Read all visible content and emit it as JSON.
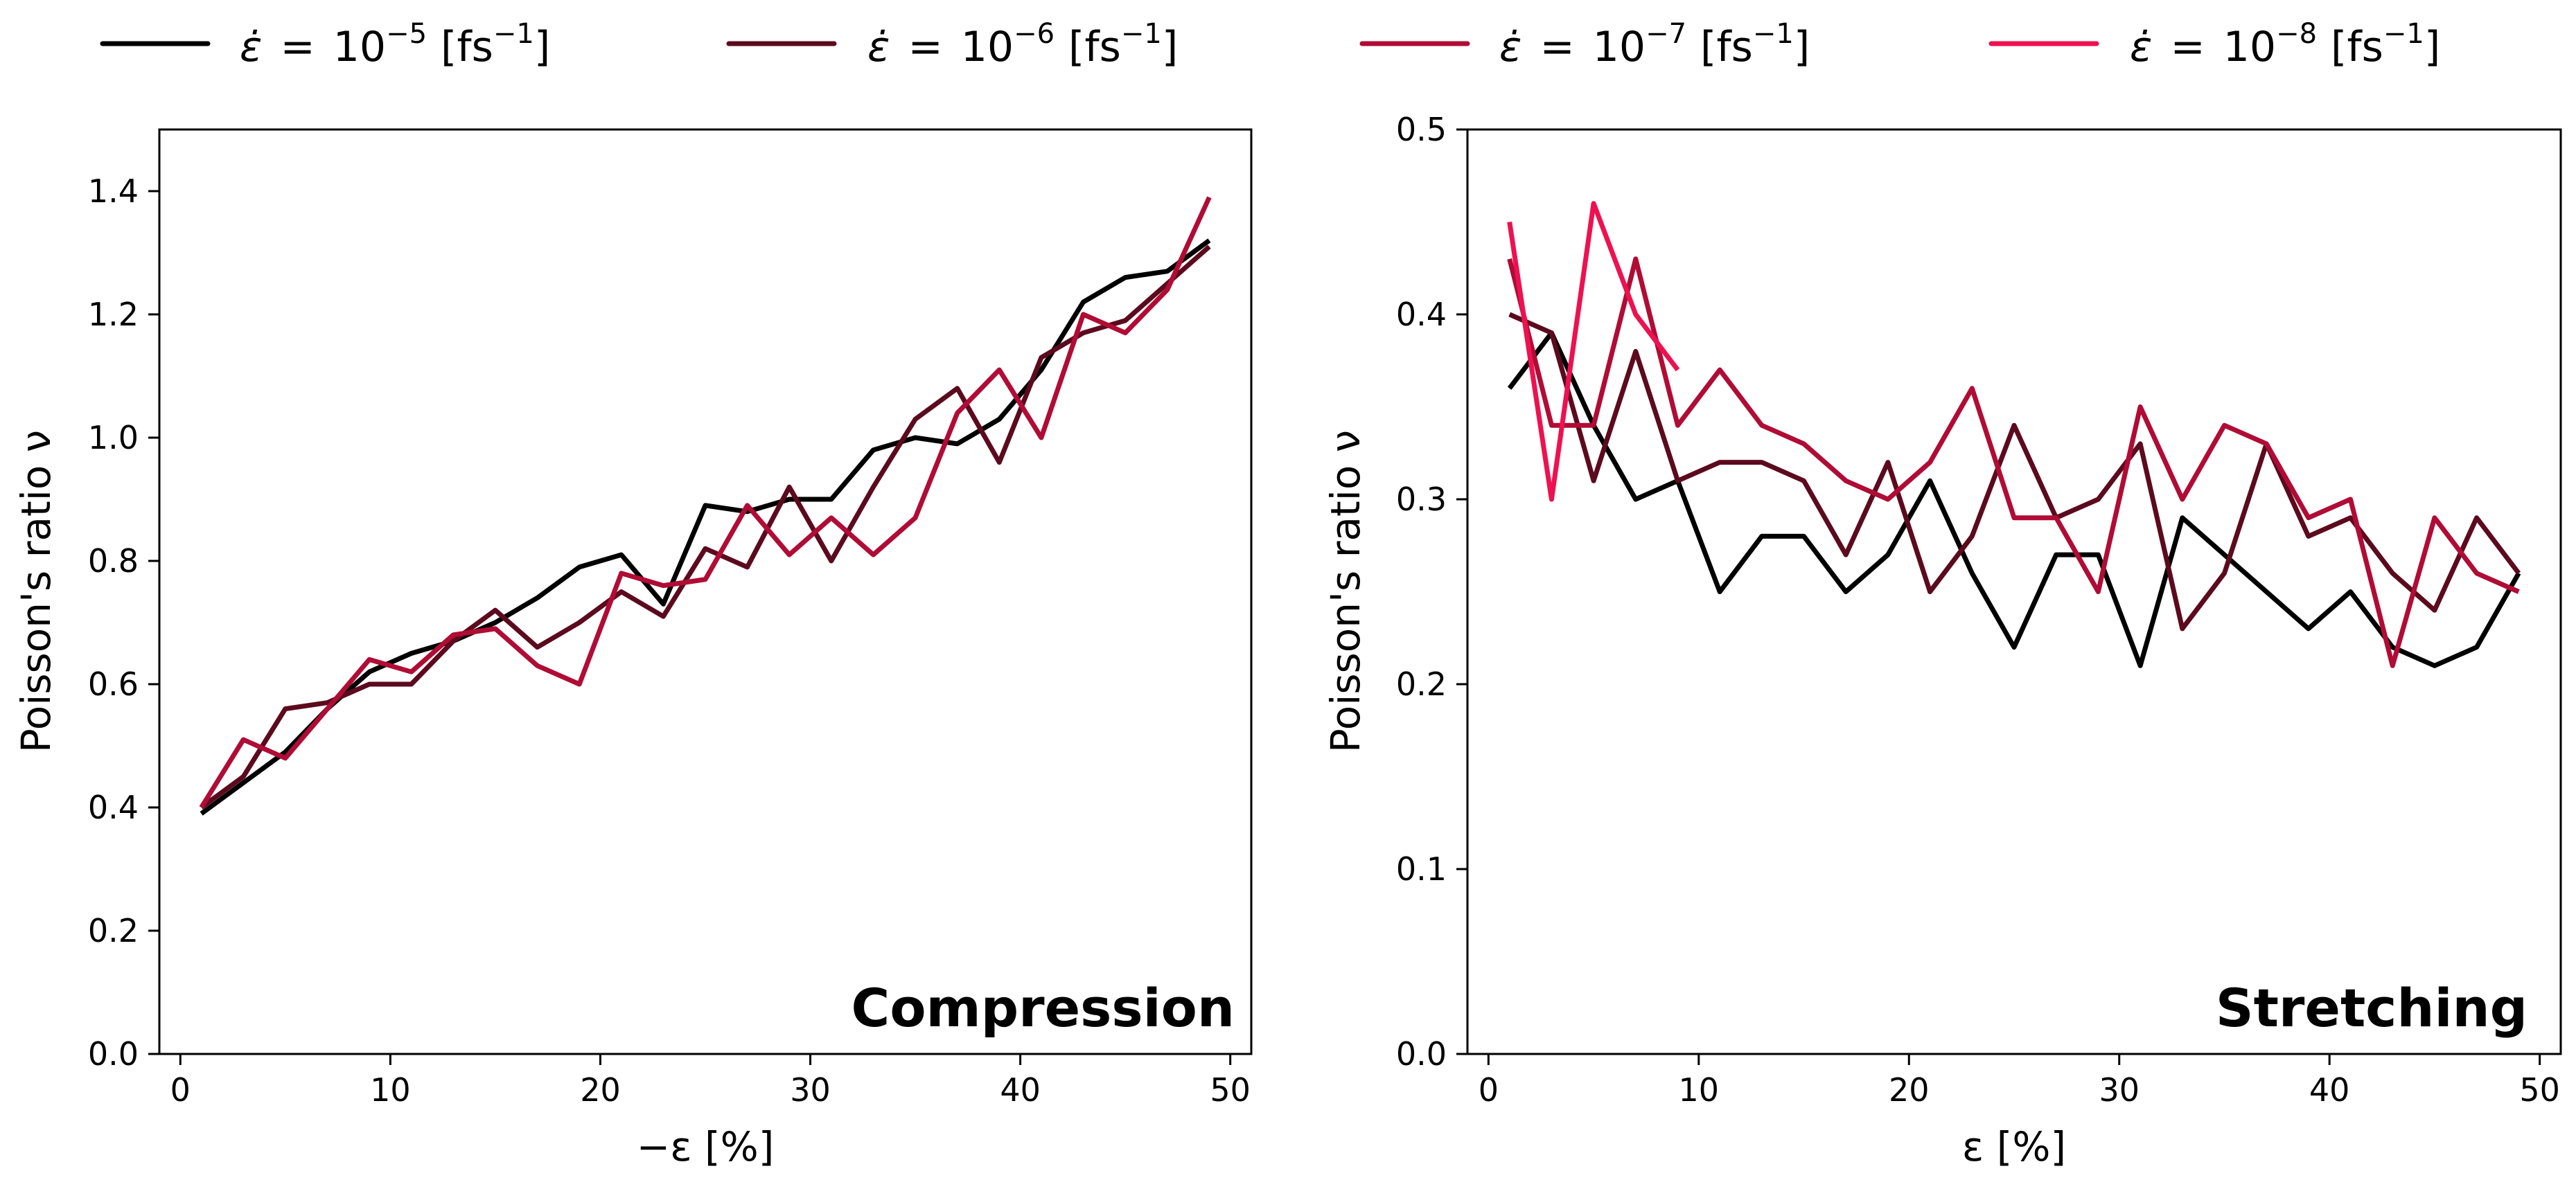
{
  "legend": [
    {
      "symbol": "ε̇",
      "eq": "=",
      "base": "10",
      "exp": "−5",
      "unit": "[fs",
      "unit_exp": "−1",
      "unit_close": "]",
      "color": "#000000"
    },
    {
      "symbol": "ε̇",
      "eq": "=",
      "base": "10",
      "exp": "−6",
      "unit": "[fs",
      "unit_exp": "−1",
      "unit_close": "]",
      "color": "#5c0a1e"
    },
    {
      "symbol": "ε̇",
      "eq": "=",
      "base": "10",
      "exp": "−7",
      "unit": "[fs",
      "unit_exp": "−1",
      "unit_close": "]",
      "color": "#b00c35"
    },
    {
      "symbol": "ε̇",
      "eq": "=",
      "base": "10",
      "exp": "−8",
      "unit": "[fs",
      "unit_exp": "−1",
      "unit_close": "]",
      "color": "#ee1150"
    }
  ],
  "chart_data": [
    {
      "type": "line",
      "panel_label": "Compression",
      "xlabel": "−ε [%]",
      "ylabel": "Poisson's ratio ν",
      "xlim": [
        -1,
        51
      ],
      "ylim": [
        0.0,
        1.5
      ],
      "xticks": [
        0,
        10,
        20,
        30,
        40,
        50
      ],
      "yticks": [
        0.0,
        0.2,
        0.4,
        0.6,
        0.8,
        1.0,
        1.2,
        1.4
      ],
      "ytick_labels": [
        "0.0",
        "0.2",
        "0.4",
        "0.6",
        "0.8",
        "1.0",
        "1.2",
        "1.4"
      ],
      "x": [
        1,
        3,
        5,
        7,
        9,
        11,
        13,
        15,
        17,
        19,
        21,
        23,
        25,
        27,
        29,
        31,
        33,
        35,
        37,
        39,
        41,
        43,
        45,
        47,
        49
      ],
      "series": [
        {
          "name": "10^-5",
          "color": "#000000",
          "values": [
            0.39,
            0.44,
            0.49,
            0.56,
            0.62,
            0.65,
            0.67,
            0.7,
            0.74,
            0.79,
            0.81,
            0.73,
            0.89,
            0.88,
            0.9,
            0.9,
            0.98,
            1.0,
            0.99,
            1.03,
            1.11,
            1.22,
            1.26,
            1.27,
            1.32
          ]
        },
        {
          "name": "10^-6",
          "color": "#5c0a1e",
          "values": [
            0.4,
            0.45,
            0.56,
            0.57,
            0.6,
            0.6,
            0.67,
            0.72,
            0.66,
            0.7,
            0.75,
            0.71,
            0.82,
            0.79,
            0.92,
            0.8,
            0.92,
            1.03,
            1.08,
            0.96,
            1.13,
            1.17,
            1.19,
            1.25,
            1.31
          ]
        },
        {
          "name": "10^-7",
          "color": "#b00c35",
          "values": [
            0.4,
            0.51,
            0.48,
            0.56,
            0.64,
            0.62,
            0.68,
            0.69,
            0.63,
            0.6,
            0.78,
            0.76,
            0.77,
            0.89,
            0.81,
            0.87,
            0.81,
            0.87,
            1.04,
            1.11,
            1.0,
            1.2,
            1.17,
            1.24,
            1.39
          ]
        }
      ]
    },
    {
      "type": "line",
      "panel_label": "Stretching",
      "xlabel": "ε [%]",
      "ylabel": "Poisson's ratio ν",
      "xlim": [
        -1,
        51
      ],
      "ylim": [
        0.0,
        0.5
      ],
      "xticks": [
        0,
        10,
        20,
        30,
        40,
        50
      ],
      "yticks": [
        0.0,
        0.1,
        0.2,
        0.3,
        0.4,
        0.5
      ],
      "ytick_labels": [
        "0.0",
        "0.1",
        "0.2",
        "0.3",
        "0.4",
        "0.5"
      ],
      "series": [
        {
          "name": "10^-5",
          "color": "#000000",
          "x": [
            1,
            3,
            5,
            7,
            9,
            11,
            13,
            15,
            17,
            19,
            21,
            23,
            25,
            27,
            29,
            31,
            33,
            35,
            37,
            39,
            41,
            43,
            45,
            47,
            49
          ],
          "values": [
            0.36,
            0.39,
            0.34,
            0.3,
            0.31,
            0.25,
            0.28,
            0.28,
            0.25,
            0.27,
            0.31,
            0.26,
            0.22,
            0.27,
            0.27,
            0.21,
            0.29,
            0.27,
            0.25,
            0.23,
            0.25,
            0.22,
            0.21,
            0.22,
            0.26
          ]
        },
        {
          "name": "10^-6",
          "color": "#5c0a1e",
          "x": [
            1,
            3,
            5,
            7,
            9,
            11,
            13,
            15,
            17,
            19,
            21,
            23,
            25,
            27,
            29,
            31,
            33,
            35,
            37,
            39,
            41,
            43,
            45,
            47,
            49
          ],
          "values": [
            0.4,
            0.39,
            0.31,
            0.38,
            0.31,
            0.32,
            0.32,
            0.31,
            0.27,
            0.32,
            0.25,
            0.28,
            0.34,
            0.29,
            0.3,
            0.33,
            0.23,
            0.26,
            0.33,
            0.28,
            0.29,
            0.26,
            0.24,
            0.29,
            0.26
          ]
        },
        {
          "name": "10^-7",
          "color": "#b00c35",
          "x": [
            1,
            3,
            5,
            7,
            9,
            11,
            13,
            15,
            17,
            19,
            21,
            23,
            25,
            27,
            29,
            31,
            33,
            35,
            37,
            39,
            41,
            43,
            45,
            47,
            49
          ],
          "values": [
            0.43,
            0.34,
            0.34,
            0.43,
            0.34,
            0.37,
            0.34,
            0.33,
            0.31,
            0.3,
            0.32,
            0.36,
            0.29,
            0.29,
            0.25,
            0.35,
            0.3,
            0.34,
            0.33,
            0.29,
            0.3,
            0.21,
            0.29,
            0.26,
            0.25
          ]
        },
        {
          "name": "10^-8",
          "color": "#ee1150",
          "x": [
            1,
            3,
            5,
            7,
            9
          ],
          "values": [
            0.45,
            0.3,
            0.46,
            0.4,
            0.37
          ]
        }
      ]
    }
  ]
}
